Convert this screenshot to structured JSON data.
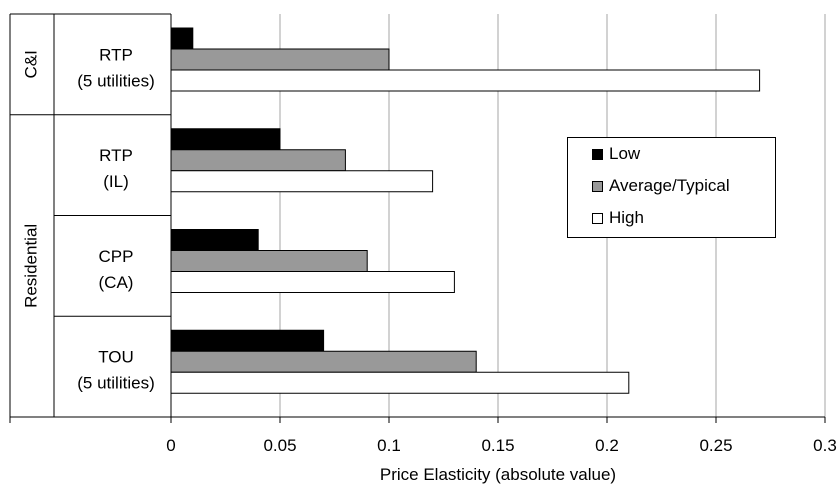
{
  "chart_data": {
    "type": "bar",
    "orientation": "horizontal",
    "categories": [
      {
        "line1": "RTP",
        "line2": "(5 utilities)"
      },
      {
        "line1": "RTP",
        "line2": "(IL)"
      },
      {
        "line1": "CPP",
        "line2": "(CA)"
      },
      {
        "line1": "TOU",
        "line2": "(5 utilities)"
      }
    ],
    "groups": [
      {
        "label": "C&I",
        "categories": [
          0
        ]
      },
      {
        "label": "Residential",
        "categories": [
          1,
          2,
          3
        ]
      }
    ],
    "series": [
      {
        "name": "Low",
        "color": "#000000",
        "values": [
          0.01,
          0.05,
          0.04,
          0.07
        ]
      },
      {
        "name": "Average/Typical",
        "color": "#999999",
        "values": [
          0.1,
          0.08,
          0.09,
          0.14
        ]
      },
      {
        "name": "High",
        "color": "#ffffff",
        "values": [
          0.27,
          0.12,
          0.13,
          0.21
        ]
      }
    ],
    "xlabel": "Price Elasticity (absolute value)",
    "xlim": [
      0,
      0.3
    ],
    "xticks": [
      "0",
      "0.05",
      "0.1",
      "0.15",
      "0.2",
      "0.25",
      "0.3"
    ],
    "grid": true,
    "legend_position": "right"
  }
}
